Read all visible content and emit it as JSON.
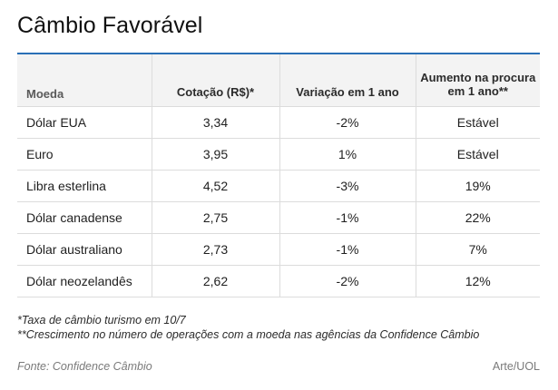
{
  "title": "Câmbio Favorável",
  "table": {
    "headers": [
      "Moeda",
      "Cotação (R$)*",
      "Variação em 1 ano",
      "Aumento na procura em 1 ano**"
    ],
    "rows": [
      [
        "Dólar EUA",
        "3,34",
        "-2%",
        "Estável"
      ],
      [
        "Euro",
        "3,95",
        "1%",
        "Estável"
      ],
      [
        "Libra esterlina",
        "4,52",
        "-3%",
        "19%"
      ],
      [
        "Dólar canadense",
        "2,75",
        "-1%",
        "22%"
      ],
      [
        "Dólar australiano",
        "2,73",
        "-1%",
        "7%"
      ],
      [
        "Dólar neozelandês",
        "2,62",
        "-2%",
        "12%"
      ]
    ]
  },
  "notes": [
    "*Taxa de câmbio turismo em 10/7",
    "**Crescimento no número de operações com a moeda nas agências da Confidence Câmbio"
  ],
  "source": "Fonte: Confidence Câmbio",
  "credit": "Arte/UOL",
  "colors": {
    "accent_rule": "#2a6fb6",
    "header_bg": "#f3f3f3",
    "grid": "#dcdcdc"
  }
}
